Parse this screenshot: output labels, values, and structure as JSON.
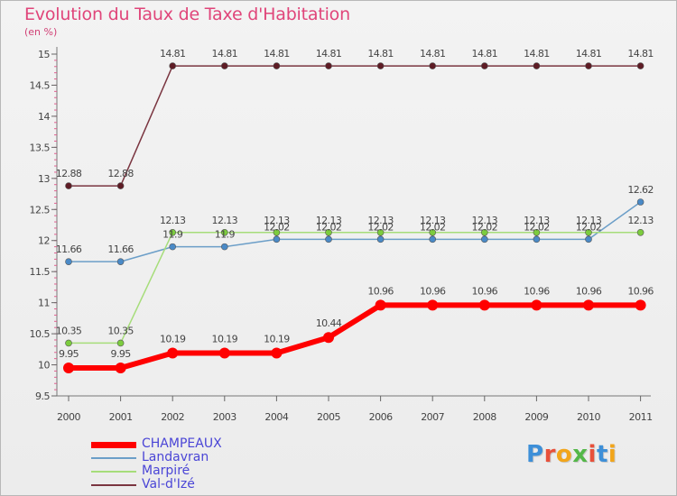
{
  "title": "Evolution du Taux de Taxe d'Habitation",
  "subtitle": "(en %)",
  "brand": {
    "text": "Proxiti",
    "letter_colors": [
      "#3d8fd8",
      "#e8503a",
      "#f2a51a",
      "#53b748",
      "#e8503a",
      "#3d8fd8",
      "#f2a51a"
    ]
  },
  "chart_data": {
    "type": "line",
    "title": "Evolution du Taux de Taxe d'Habitation",
    "ylabel": "(en %)",
    "x": [
      "2000",
      "2001",
      "2002",
      "2003",
      "2004",
      "2005",
      "2006",
      "2007",
      "2008",
      "2009",
      "2010",
      "2011"
    ],
    "ylim": [
      9.5,
      15
    ],
    "yticks": [
      "9.5",
      "10",
      "10.5",
      "11",
      "11.5",
      "12",
      "12.5",
      "13",
      "13.5",
      "14",
      "14.5",
      "15"
    ],
    "grid": false,
    "legend_position": "bottom-left",
    "series": [
      {
        "name": "CHAMPEAUX",
        "color": "#ff0000",
        "point_color": "#ff0000",
        "width": 6,
        "radius": 6,
        "values": [
          9.95,
          9.95,
          10.19,
          10.19,
          10.19,
          10.44,
          10.96,
          10.96,
          10.96,
          10.96,
          10.96,
          10.96
        ],
        "labels": [
          "9.95",
          "9.95",
          "10.19",
          "10.19",
          "10.19",
          "10.44",
          "10.96",
          "10.96",
          "10.96",
          "10.96",
          "10.96",
          "10.96"
        ]
      },
      {
        "name": "Landavran",
        "color": "#6b9ec8",
        "point_color": "#4a8ac7",
        "width": 1.5,
        "radius": 3.5,
        "values": [
          11.66,
          11.66,
          11.9,
          11.9,
          12.02,
          12.02,
          12.02,
          12.02,
          12.02,
          12.02,
          12.02,
          12.62
        ],
        "labels": [
          "11.66",
          "11.66",
          "11.9",
          "11.9",
          "12.02",
          "12.02",
          "12.02",
          "12.02",
          "12.02",
          "12.02",
          "12.02",
          "12.62"
        ]
      },
      {
        "name": "Marpiré",
        "color": "#a6dd7a",
        "point_color": "#7ccc3e",
        "width": 1.5,
        "radius": 3.5,
        "values": [
          10.35,
          10.35,
          12.13,
          12.13,
          12.13,
          12.13,
          12.13,
          12.13,
          12.13,
          12.13,
          12.13,
          12.13
        ],
        "labels": [
          "10.35",
          "10.35",
          "12.13",
          "12.13",
          "12.13",
          "12.13",
          "12.13",
          "12.13",
          "12.13",
          "12.13",
          "12.13",
          "12.13"
        ]
      },
      {
        "name": "Val-d'Izé",
        "color": "#7a3540",
        "point_color": "#5e1c25",
        "width": 1.5,
        "radius": 3.5,
        "values": [
          12.88,
          12.88,
          14.81,
          14.81,
          14.81,
          14.81,
          14.81,
          14.81,
          14.81,
          14.81,
          14.81,
          14.81
        ],
        "labels": [
          "12.88",
          "12.88",
          "14.81",
          "14.81",
          "14.81",
          "14.81",
          "14.81",
          "14.81",
          "14.81",
          "14.81",
          "14.81",
          "14.81"
        ]
      }
    ]
  }
}
